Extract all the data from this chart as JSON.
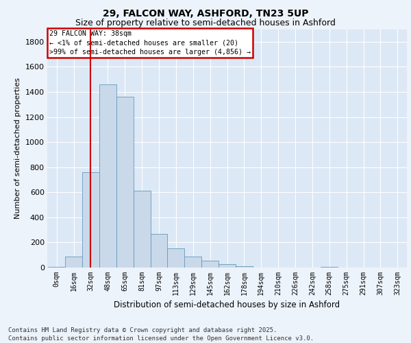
{
  "title1": "29, FALCON WAY, ASHFORD, TN23 5UP",
  "title2": "Size of property relative to semi-detached houses in Ashford",
  "xlabel": "Distribution of semi-detached houses by size in Ashford",
  "ylabel": "Number of semi-detached properties",
  "footnote": "Contains HM Land Registry data © Crown copyright and database right 2025.\nContains public sector information licensed under the Open Government Licence v3.0.",
  "bin_labels": [
    "0sqm",
    "16sqm",
    "32sqm",
    "48sqm",
    "65sqm",
    "81sqm",
    "97sqm",
    "113sqm",
    "129sqm",
    "145sqm",
    "162sqm",
    "178sqm",
    "194sqm",
    "210sqm",
    "226sqm",
    "242sqm",
    "258sqm",
    "275sqm",
    "291sqm",
    "307sqm",
    "323sqm"
  ],
  "bar_values": [
    5,
    90,
    760,
    1460,
    1360,
    610,
    270,
    155,
    90,
    55,
    30,
    10,
    0,
    0,
    0,
    0,
    5,
    0,
    0,
    0,
    0
  ],
  "bar_color": "#c9d9ea",
  "bar_edge_color": "#6699bb",
  "vline_color": "#cc0000",
  "vline_x_index": 2,
  "annotation_title": "29 FALCON WAY: 38sqm",
  "annotation_line1": "← <1% of semi-detached houses are smaller (20)",
  "annotation_line2": ">99% of semi-detached houses are larger (4,856) →",
  "annotation_box_color": "#ffffff",
  "annotation_box_edge_color": "#cc0000",
  "ylim": [
    0,
    1900
  ],
  "yticks": [
    0,
    200,
    400,
    600,
    800,
    1000,
    1200,
    1400,
    1600,
    1800
  ],
  "background_color": "#dce8f5",
  "fig_background_color": "#edf3fa",
  "grid_color": "#ffffff",
  "title1_fontsize": 10,
  "title2_fontsize": 9,
  "ylabel_fontsize": 8,
  "xlabel_fontsize": 8.5,
  "footnote_fontsize": 6.5
}
